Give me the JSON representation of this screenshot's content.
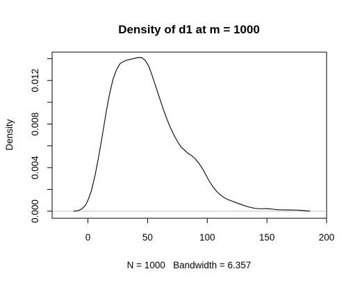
{
  "chart_data": {
    "type": "line",
    "title": "Density of d1 at m = 1000",
    "xlabel": "N = 1000   Bandwidth = 6.357",
    "ylabel": "Density",
    "xlim": [
      -30,
      200
    ],
    "ylim": [
      -0.00065,
      0.0146
    ],
    "x_ticks": [
      0,
      50,
      100,
      150,
      200
    ],
    "x_tick_labels": [
      "0",
      "50",
      "100",
      "150",
      "200"
    ],
    "y_ticks": [
      0.0,
      0.002,
      0.004,
      0.006,
      0.008,
      0.01,
      0.012,
      0.014
    ],
    "y_tick_labels": [
      "0.000",
      "",
      "0.004",
      "",
      "0.008",
      "",
      "0.012",
      ""
    ],
    "baseline": 0,
    "baseline_color": "#c0c0c0",
    "line_color": "#000000",
    "series": [
      {
        "x": [
          -12,
          -8,
          -5,
          -2,
          0,
          3,
          6,
          9,
          12,
          15,
          18,
          21,
          24,
          27,
          30,
          33,
          36,
          39,
          42,
          45,
          48,
          51,
          54,
          57,
          60,
          63,
          66,
          69,
          72,
          75,
          78,
          81,
          84,
          87,
          90,
          93,
          96,
          99,
          102,
          105,
          108,
          111,
          114,
          117,
          120,
          125,
          130,
          135,
          140,
          145,
          150,
          155,
          160,
          165,
          170,
          175,
          180,
          186
        ],
        "y": [
          0.0,
          6e-05,
          0.00022,
          0.00055,
          0.001,
          0.0019,
          0.0033,
          0.005,
          0.0069,
          0.0089,
          0.0107,
          0.0121,
          0.013,
          0.01355,
          0.01375,
          0.01388,
          0.01395,
          0.01403,
          0.01411,
          0.0141,
          0.01385,
          0.0133,
          0.0124,
          0.0114,
          0.0104,
          0.0094,
          0.0085,
          0.0077,
          0.007,
          0.0064,
          0.0059,
          0.0056,
          0.0053,
          0.0051,
          0.0048,
          0.0044,
          0.0039,
          0.0033,
          0.0027,
          0.0022,
          0.0018,
          0.0015,
          0.00125,
          0.00108,
          0.00095,
          0.00075,
          0.00055,
          0.00038,
          0.00026,
          0.00022,
          0.00024,
          0.00018,
          0.00013,
          0.00012,
          0.00011,
          0.0001,
          7e-05,
          0.0
        ]
      }
    ]
  }
}
